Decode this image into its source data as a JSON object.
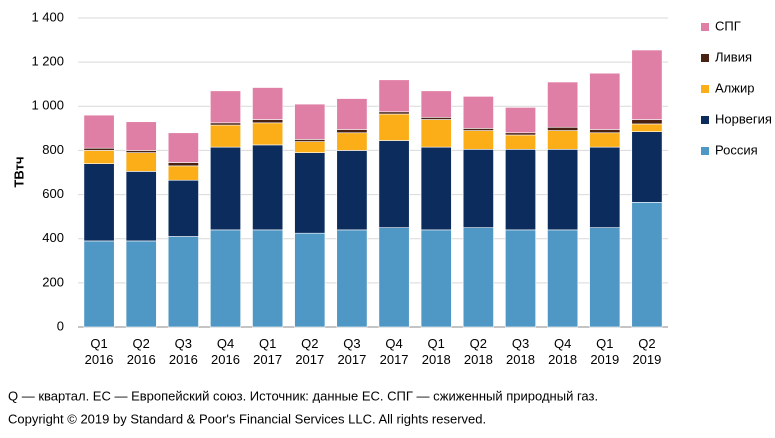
{
  "chart_data": {
    "type": "stacked-bar",
    "y_label": "ТВтч",
    "categories": [
      "Q1 2016",
      "Q2 2016",
      "Q3 2016",
      "Q4 2016",
      "Q1 2017",
      "Q2 2017",
      "Q3 2017",
      "Q4 2017",
      "Q1 2018",
      "Q2 2018",
      "Q3 2018",
      "Q4 2018",
      "Q1 2019",
      "Q2 2019"
    ],
    "series": [
      {
        "name": "Россия",
        "color": "#4f97c4",
        "values": [
          390,
          390,
          410,
          440,
          440,
          425,
          440,
          450,
          440,
          450,
          440,
          440,
          450,
          565
        ]
      },
      {
        "name": "Норвегия",
        "color": "#0d2c5e",
        "values": [
          350,
          315,
          255,
          375,
          385,
          365,
          360,
          395,
          375,
          355,
          365,
          365,
          365,
          320
        ]
      },
      {
        "name": "Алжир",
        "color": "#fbae17",
        "values": [
          60,
          85,
          65,
          100,
          100,
          50,
          80,
          120,
          125,
          85,
          65,
          85,
          65,
          35
        ]
      },
      {
        "name": "Ливия",
        "color": "#4a2214",
        "values": [
          10,
          10,
          15,
          10,
          15,
          10,
          15,
          10,
          10,
          10,
          10,
          15,
          15,
          20
        ]
      },
      {
        "name": "СПГ",
        "color": "#e07fa5",
        "values": [
          150,
          130,
          135,
          145,
          145,
          160,
          140,
          145,
          120,
          145,
          115,
          205,
          255,
          315
        ]
      }
    ],
    "ylim": [
      0,
      1400
    ],
    "yticks": [
      0,
      200,
      400,
      600,
      800,
      {
        "value": 1000,
        "label": "1 000"
      },
      {
        "value": 1200,
        "label": "1 200"
      },
      {
        "value": 1400,
        "label": "1 400"
      }
    ],
    "grid": true,
    "legend": "right",
    "footnotes": [
      "Q — квартал. ЕС — Европейский союз. Источник: данные ЕС. СПГ — сжиженный природный газ.",
      "Copyright © 2019 by Standard & Poor's Financial Services LLC. All rights reserved."
    ]
  }
}
